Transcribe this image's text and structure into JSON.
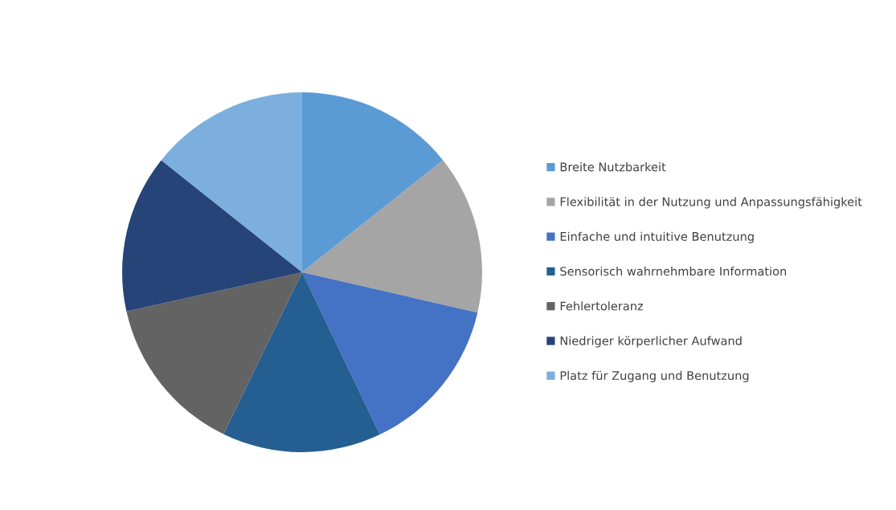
{
  "chart_data": {
    "type": "pie",
    "categories": [
      "Breite Nutzbarkeit",
      "Flexibilität in der Nutzung und Anpassungsfähigkeit",
      "Einfache und intuitive Benutzung",
      "Sensorisch wahrnehmbare Information",
      "Fehlertoleranz",
      "Niedriger körperlicher Aufwand",
      "Platz für Zugang und Benutzung"
    ],
    "values": [
      14.3,
      14.3,
      14.3,
      14.3,
      14.3,
      14.2,
      14.3
    ],
    "colors": [
      "#5b9bd5",
      "#a5a5a5",
      "#4472c4",
      "#255e91",
      "#636363",
      "#264478",
      "#7cafdd"
    ],
    "legend": "right"
  }
}
